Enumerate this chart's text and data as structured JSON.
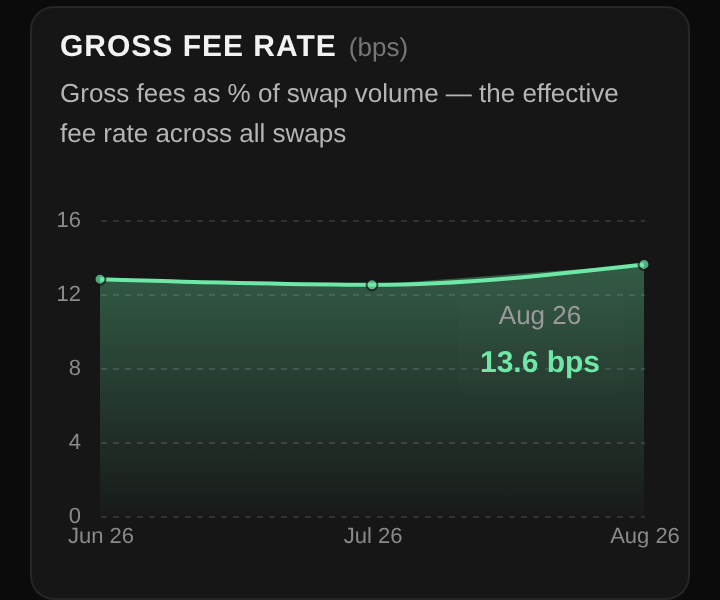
{
  "chart_data": {
    "type": "area",
    "title": "GROSS FEE RATE",
    "subtitle": "Gross fees as % of swap volume — the effective fee rate across all swaps",
    "annotations": [
      "(bps)",
      {
        "text": "Aug 26",
        "x": "Aug 26",
        "y": 13.6
      }
    ],
    "categories": [
      "Jun 26",
      "Jul 26",
      "Aug 26"
    ],
    "series": [
      {
        "color": "#6ee7a7",
        "values": [
          12.8,
          12.5,
          13.6
        ],
        "value_labels": [
          null,
          null,
          "13.6 bps"
        ]
      }
    ],
    "ylim": [
      0,
      16
    ],
    "yticks": [
      0,
      4,
      8,
      12,
      16
    ],
    "grid": "y",
    "marker": "circle"
  }
}
